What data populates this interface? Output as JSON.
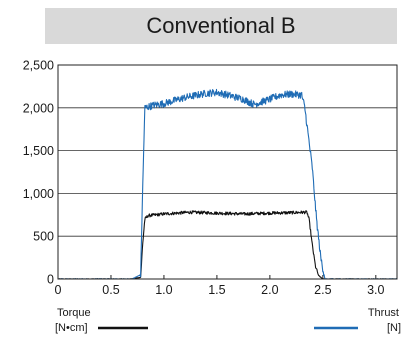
{
  "chart_data": {
    "type": "line",
    "title": "Conventional B",
    "xlim": [
      0,
      3.2
    ],
    "ylim": [
      0,
      2500
    ],
    "x_ticks": [
      0,
      0.5,
      1.0,
      1.5,
      2.0,
      2.5,
      3.0
    ],
    "x_tick_labels": [
      "0",
      "0.5",
      "1.0",
      "1.5",
      "2.0",
      "2.5",
      "3.0"
    ],
    "y_ticks": [
      0,
      500,
      1000,
      1500,
      2000,
      2500
    ],
    "y_tick_labels": [
      "0",
      "500",
      "1,000",
      "1,500",
      "2,000",
      "2,500"
    ],
    "grid": "horizontal",
    "series": [
      {
        "name": "Torque",
        "unit": "[N•cm]",
        "color": "#111111",
        "x": [
          0,
          0.7,
          0.78,
          0.8,
          0.82,
          0.85,
          1.0,
          1.25,
          1.5,
          1.75,
          2.0,
          2.2,
          2.35,
          2.37,
          2.4,
          2.43,
          2.46,
          2.5,
          3.2
        ],
        "y": [
          0,
          0,
          20,
          420,
          700,
          740,
          760,
          780,
          770,
          760,
          770,
          775,
          780,
          700,
          400,
          150,
          40,
          0,
          0
        ],
        "noise": 18
      },
      {
        "name": "Thrust",
        "unit": "[N]",
        "color": "#1f6cb5",
        "x": [
          0,
          0.7,
          0.78,
          0.8,
          0.82,
          0.9,
          1.0,
          1.2,
          1.4,
          1.5,
          1.6,
          1.75,
          1.85,
          2.0,
          2.1,
          2.2,
          2.3,
          2.33,
          2.36,
          2.4,
          2.44,
          2.48,
          2.52,
          3.2
        ],
        "y": [
          0,
          0,
          50,
          1100,
          2000,
          2030,
          2050,
          2120,
          2170,
          2180,
          2150,
          2100,
          2040,
          2100,
          2150,
          2160,
          2150,
          2000,
          1700,
          1300,
          700,
          250,
          0,
          0
        ],
        "noise": 42
      }
    ]
  }
}
